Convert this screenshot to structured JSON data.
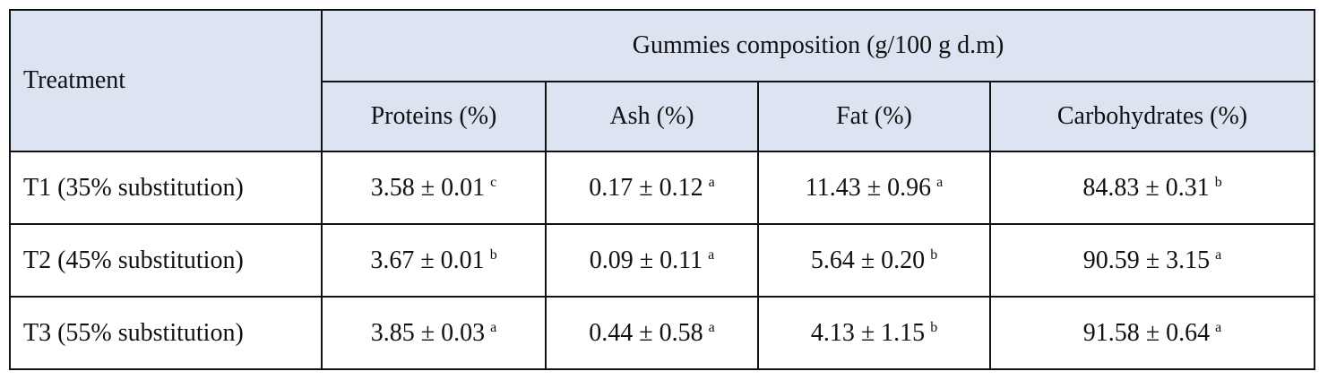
{
  "table": {
    "header": {
      "treatment": "Treatment",
      "group": "Gummies composition (g/100 g d.m)",
      "columns": [
        "Proteins (%)",
        "Ash (%)",
        "Fat (%)",
        "Carbohydrates (%)"
      ]
    },
    "rows": [
      {
        "label": "T1 (35% substitution)",
        "cells": [
          {
            "text": "3.58 ± 0.01",
            "sup": "c"
          },
          {
            "text": "0.17 ± 0.12",
            "sup": "a"
          },
          {
            "text": "11.43 ± 0.96",
            "sup": "a"
          },
          {
            "text": "84.83 ± 0.31",
            "sup": "b"
          }
        ]
      },
      {
        "label": "T2 (45% substitution)",
        "cells": [
          {
            "text": "3.67 ± 0.01",
            "sup": "b"
          },
          {
            "text": "0.09 ± 0.11",
            "sup": "a"
          },
          {
            "text": "5.64 ± 0.20",
            "sup": "b"
          },
          {
            "text": "90.59 ± 3.15",
            "sup": "a"
          }
        ]
      },
      {
        "label": "T3 (55% substitution)",
        "cells": [
          {
            "text": "3.85 ± 0.03",
            "sup": "a"
          },
          {
            "text": "0.44 ± 0.58",
            "sup": "a"
          },
          {
            "text": "4.13 ± 1.15",
            "sup": "b"
          },
          {
            "text": "91.58 ± 0.64",
            "sup": "a"
          }
        ]
      }
    ]
  }
}
